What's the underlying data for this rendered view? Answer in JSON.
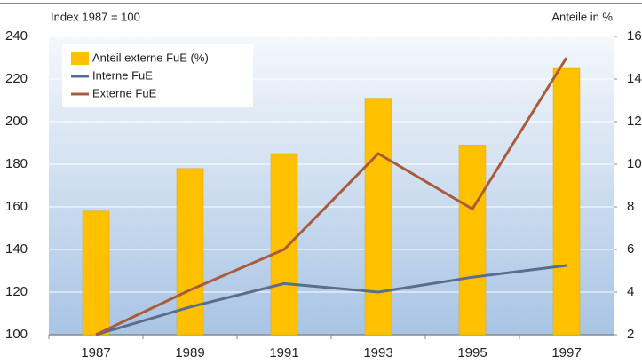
{
  "chart_data": {
    "type": "bar",
    "ylabel": "Index 1987 = 100",
    "y2label": "Anteile in %",
    "categories": [
      "1987",
      "1989",
      "1991",
      "1993",
      "1995",
      "1997"
    ],
    "series": [
      {
        "name": "Anteil externe FuE (%)",
        "type": "bar",
        "axis": "y2",
        "color": "#ffc000",
        "values": [
          7.8,
          9.8,
          10.5,
          13.1,
          10.9,
          14.5
        ]
      },
      {
        "name": "Interne FuE",
        "type": "line",
        "color": "#5a6e8c",
        "values": [
          100,
          113,
          124,
          120,
          127,
          132.5
        ]
      },
      {
        "name": "Externe FuE",
        "type": "line",
        "color": "#a85c3c",
        "values": [
          100,
          121,
          140,
          185,
          159,
          230
        ]
      }
    ],
    "ylim": [
      100,
      240
    ],
    "yticks": [
      100,
      120,
      140,
      160,
      180,
      200,
      220,
      240
    ],
    "y2lim": [
      2,
      16
    ],
    "y2ticks": [
      2,
      4,
      6,
      8,
      10,
      12,
      14,
      16
    ],
    "grid": true
  }
}
